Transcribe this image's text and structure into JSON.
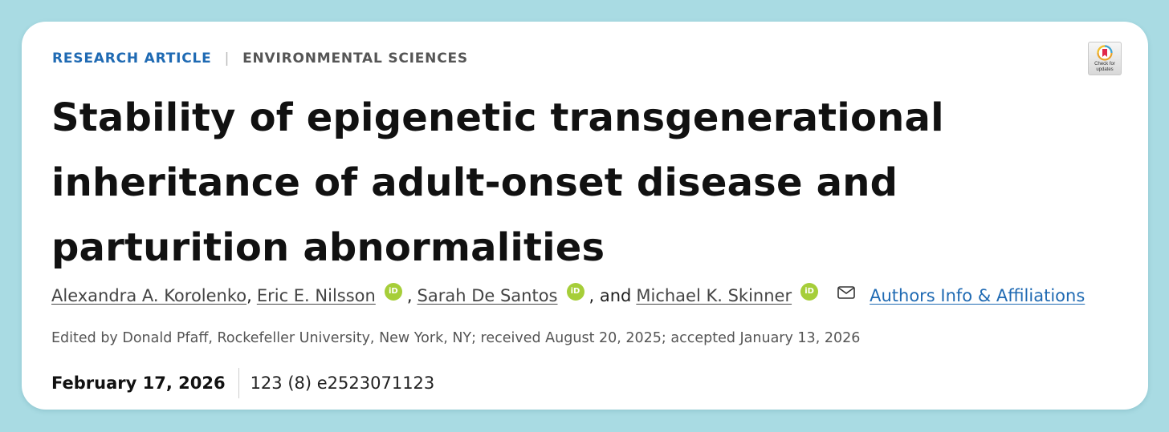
{
  "categories": {
    "primary": "RESEARCH ARTICLE",
    "separator": "|",
    "secondary": "ENVIRONMENTAL SCIENCES"
  },
  "check_updates": {
    "label_line1": "Check for",
    "label_line2": "updates"
  },
  "title": "Stability of epigenetic transgenerational inheritance of adult-onset disease and parturition abnormalities",
  "authors": [
    {
      "name": "Alexandra A. Korolenko",
      "orcid": false
    },
    {
      "name": "Eric E. Nilsson",
      "orcid": true
    },
    {
      "name": "Sarah De Santos",
      "orcid": true
    },
    {
      "name": "Michael K. Skinner",
      "orcid": true
    }
  ],
  "author_separators": {
    "comma": ",",
    "and": ", and"
  },
  "orcid_label": "iD",
  "affiliations_link": "Authors Info & Affiliations",
  "edited_line": "Edited by Donald Pfaff, Rockefeller University, New York, NY; received August 20, 2025; accepted January 13, 2026",
  "publication": {
    "date": "February 17, 2026",
    "citation": "123 (8) e2523071123"
  },
  "colors": {
    "background": "#a9dbe3",
    "link": "#1f6ab3",
    "orcid": "#a6ce39",
    "title": "#111111"
  }
}
